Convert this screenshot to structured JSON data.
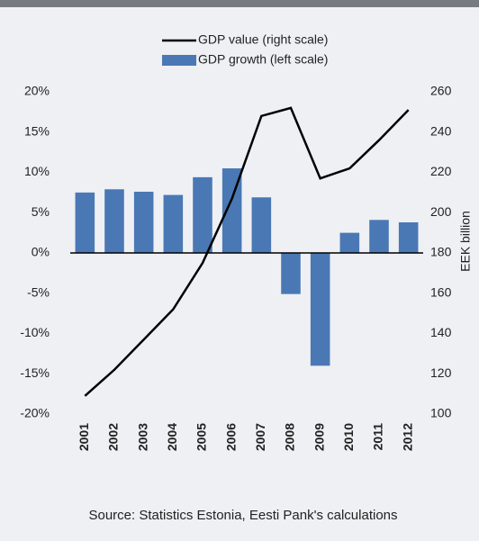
{
  "chart_data": {
    "type": "bar-line",
    "categories": [
      "2001",
      "2002",
      "2003",
      "2004",
      "2005",
      "2006",
      "2007",
      "2008",
      "2009",
      "2010",
      "2011",
      "2012"
    ],
    "series": [
      {
        "name": "GDP value (right scale)",
        "type": "line",
        "axis": "y2",
        "color": "#000000",
        "values": [
          109,
          122,
          137,
          152,
          175,
          207,
          248,
          252,
          217,
          222,
          236,
          251
        ]
      },
      {
        "name": "GDP growth (left scale)",
        "type": "bar",
        "color": "#4a78b5",
        "values": [
          7.5,
          7.9,
          7.6,
          7.2,
          9.4,
          10.5,
          6.9,
          -5.1,
          -14.0,
          2.5,
          4.1,
          3.8
        ]
      }
    ],
    "ylim": [
      -20,
      20
    ],
    "yticks": [
      {
        "value": 20,
        "label": "20%"
      },
      {
        "value": 15,
        "label": "15%"
      },
      {
        "value": 10,
        "label": "10%"
      },
      {
        "value": 5,
        "label": "5%"
      },
      {
        "value": 0,
        "label": "0%"
      },
      {
        "value": -5,
        "label": "-5%"
      },
      {
        "value": -10,
        "label": "-10%"
      },
      {
        "value": -15,
        "label": "-15%"
      },
      {
        "value": -20,
        "label": "-20%"
      }
    ],
    "y2lim": [
      100,
      260
    ],
    "y2ticks": [
      260,
      240,
      220,
      200,
      180,
      160,
      140,
      120,
      100
    ],
    "y2label": "EEK billion",
    "source": "Source: Statistics Estonia, Eesti Pank's calculations"
  }
}
